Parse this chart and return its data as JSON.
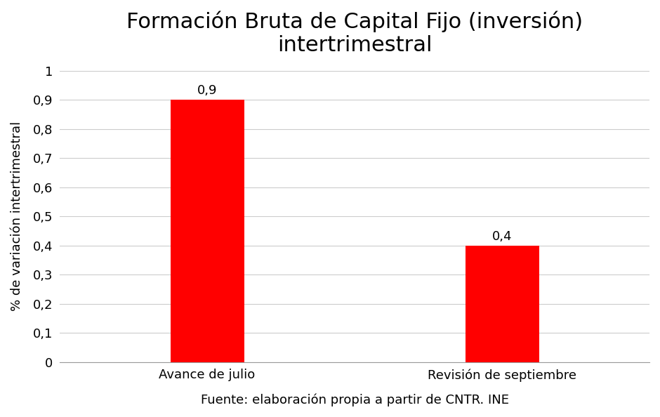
{
  "title": "Formación Bruta de Capital Fijo (inversión)\nintertrimestral",
  "categories": [
    "Avance de julio",
    "Revisión de septiembre"
  ],
  "values": [
    0.9,
    0.4
  ],
  "bar_color": "#FF0000",
  "ylabel": "% de variación intertrimestral",
  "xlabel": "Fuente: elaboración propia a partir de CNTR. INE",
  "ylim": [
    0,
    1.0
  ],
  "yticks": [
    0,
    0.1,
    0.2,
    0.3,
    0.4,
    0.5,
    0.6,
    0.7,
    0.8,
    0.9,
    1
  ],
  "ytick_labels": [
    "0",
    "0,1",
    "0,2",
    "0,3",
    "0,4",
    "0,5",
    "0,6",
    "0,7",
    "0,8",
    "0,9",
    "1"
  ],
  "title_fontsize": 22,
  "label_fontsize": 13,
  "tick_fontsize": 13,
  "bar_label_fontsize": 13,
  "xlabel_fontsize": 13,
  "background_color": "#ffffff",
  "plot_background_color": "#ffffff",
  "bar_label_values": [
    "0,9",
    "0,4"
  ],
  "bar_width": 0.25,
  "grid_color": "#cccccc",
  "spine_color": "#999999"
}
